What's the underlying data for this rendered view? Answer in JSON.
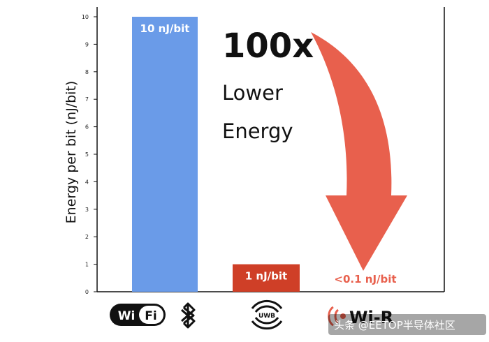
{
  "chart_data": {
    "type": "bar",
    "ylabel": "Energy per bit (nJ/bit)",
    "ylim": [
      0,
      10
    ],
    "yticks": [
      "0",
      "1",
      "2",
      "3",
      "4",
      "5",
      "6",
      "7",
      "8",
      "9",
      "10"
    ],
    "categories": [
      "Wi-Fi / Bluetooth",
      "UWB",
      "Wi-R"
    ],
    "values": [
      10,
      1,
      0.1
    ],
    "data_labels": [
      "10 nJ/bit",
      "1 nJ/bit",
      "<0.1 nJ/bit"
    ],
    "colors": {
      "wifi": "#6a9be8",
      "uwb": "#cf3f27",
      "arrow": "#e8604d"
    },
    "grid": false,
    "annotation": {
      "headline": "100x",
      "line1": "Lower",
      "line2": "Energy"
    },
    "logos": {
      "wifi_a": "Wi",
      "wifi_b": "Fi",
      "uwb": "UWB",
      "wir": "Wi-R",
      "bluetooth_icon": "bluetooth-icon"
    }
  },
  "watermark": "头条 @EETOP半导体社区"
}
